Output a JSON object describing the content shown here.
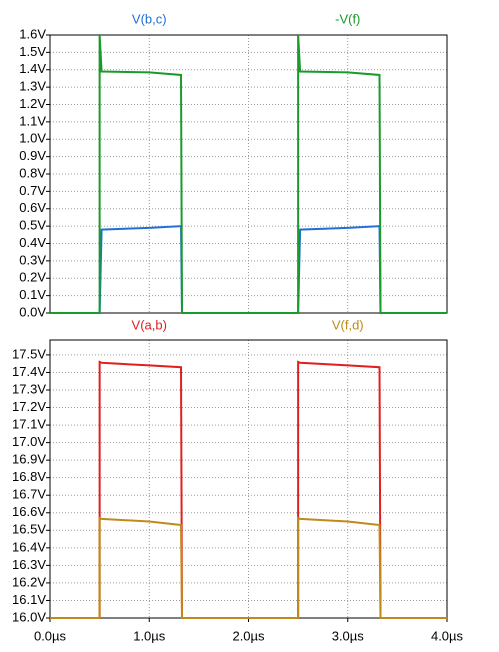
{
  "chart_data": [
    {
      "type": "line",
      "x": [
        0,
        0.5,
        0.5,
        0.52,
        1.0,
        1.32,
        1.33,
        2.5,
        2.5,
        2.52,
        3.0,
        3.32,
        3.33,
        4.0
      ],
      "series": [
        {
          "name": "V(b,c)",
          "color": "#1f6fd6",
          "values": [
            0,
            0,
            0,
            0.48,
            0.49,
            0.5,
            0,
            0,
            0,
            0.48,
            0.49,
            0.5,
            0,
            0
          ]
        },
        {
          "name": "-V(f)",
          "color": "#1a9a2a",
          "values": [
            0,
            0,
            1.6,
            1.39,
            1.385,
            1.37,
            0,
            0,
            1.6,
            1.39,
            1.385,
            1.37,
            0,
            0
          ]
        }
      ],
      "xlim": [
        0,
        4
      ],
      "xticks": [
        0,
        1,
        2,
        3,
        4
      ],
      "ylim": [
        0,
        1.6
      ],
      "yticks": [
        {
          "value": 0,
          "label": "0.0V"
        },
        {
          "value": 0.1,
          "label": "0.1V"
        },
        {
          "value": 0.2,
          "label": "0.2V"
        },
        {
          "value": 0.3,
          "label": "0.3V"
        },
        {
          "value": 0.4,
          "label": "0.4V"
        },
        {
          "value": 0.5,
          "label": "0.5V"
        },
        {
          "value": 0.6,
          "label": "0.6V"
        },
        {
          "value": 0.7,
          "label": "0.7V"
        },
        {
          "value": 0.8,
          "label": "0.8V"
        },
        {
          "value": 0.9,
          "label": "0.9V"
        },
        {
          "value": 1.0,
          "label": "1.0V"
        },
        {
          "value": 1.1,
          "label": "1.1V"
        },
        {
          "value": 1.2,
          "label": "1.2V"
        },
        {
          "value": 1.3,
          "label": "1.3V"
        },
        {
          "value": 1.4,
          "label": "1.4V"
        },
        {
          "value": 1.5,
          "label": "1.5V"
        },
        {
          "value": 1.6,
          "label": "1.6V"
        }
      ],
      "grid": true
    },
    {
      "type": "line",
      "x": [
        0,
        0.5,
        0.5,
        0.52,
        1.0,
        1.32,
        1.33,
        2.5,
        2.5,
        2.52,
        3.0,
        3.32,
        3.33,
        4.0
      ],
      "series": [
        {
          "name": "V(a,b)",
          "color": "#e0201e",
          "values": [
            16.0,
            16.0,
            17.46,
            17.455,
            17.44,
            17.43,
            16.0,
            16.0,
            17.46,
            17.455,
            17.44,
            17.43,
            16.0,
            16.0
          ]
        },
        {
          "name": "V(f,d)",
          "color": "#c08a18",
          "values": [
            16.0,
            16.0,
            16.57,
            16.565,
            16.55,
            16.53,
            16.0,
            16.0,
            16.57,
            16.565,
            16.55,
            16.53,
            16.0,
            16.0
          ]
        }
      ],
      "xlim": [
        0,
        4
      ],
      "xticks": [
        {
          "value": 0,
          "label": "0.0µs"
        },
        {
          "value": 1,
          "label": "1.0µs"
        },
        {
          "value": 2,
          "label": "2.0µs"
        },
        {
          "value": 3,
          "label": "3.0µs"
        },
        {
          "value": 4,
          "label": "4.0µs"
        }
      ],
      "ylim": [
        16.0,
        17.585
      ],
      "yticks": [
        {
          "value": 16.0,
          "label": "16.0V"
        },
        {
          "value": 16.1,
          "label": "16.1V"
        },
        {
          "value": 16.2,
          "label": "16.2V"
        },
        {
          "value": 16.3,
          "label": "16.3V"
        },
        {
          "value": 16.4,
          "label": "16.4V"
        },
        {
          "value": 16.5,
          "label": "16.5V"
        },
        {
          "value": 16.6,
          "label": "16.6V"
        },
        {
          "value": 16.7,
          "label": "16.7V"
        },
        {
          "value": 16.8,
          "label": "16.8V"
        },
        {
          "value": 16.9,
          "label": "16.9V"
        },
        {
          "value": 17.0,
          "label": "17.0V"
        },
        {
          "value": 17.1,
          "label": "17.1V"
        },
        {
          "value": 17.2,
          "label": "17.2V"
        },
        {
          "value": 17.3,
          "label": "17.3V"
        },
        {
          "value": 17.4,
          "label": "17.4V"
        },
        {
          "value": 17.5,
          "label": "17.5V"
        }
      ],
      "grid": true
    }
  ]
}
